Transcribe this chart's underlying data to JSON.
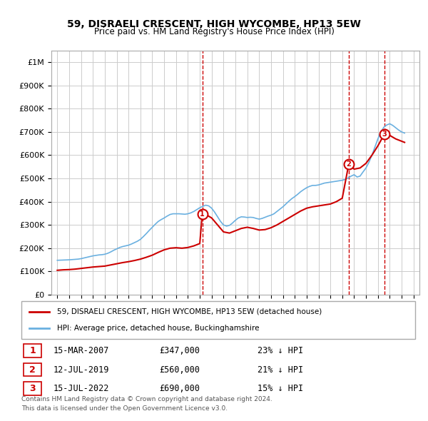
{
  "title": "59, DISRAELI CRESCENT, HIGH WYCOMBE, HP13 5EW",
  "subtitle": "Price paid vs. HM Land Registry's House Price Index (HPI)",
  "hpi_label": "HPI: Average price, detached house, Buckinghamshire",
  "price_label": "59, DISRAELI CRESCENT, HIGH WYCOMBE, HP13 5EW (detached house)",
  "hpi_color": "#6ab0e0",
  "price_color": "#cc0000",
  "vline_color": "#cc0000",
  "marker_color": "#cc0000",
  "background_color": "#ffffff",
  "grid_color": "#cccccc",
  "ylim": [
    0,
    1050000
  ],
  "yticks": [
    0,
    100000,
    200000,
    300000,
    400000,
    500000,
    600000,
    700000,
    800000,
    900000,
    1000000
  ],
  "ytick_labels": [
    "£0",
    "£100K",
    "£200K",
    "£300K",
    "£400K",
    "£500K",
    "£600K",
    "£700K",
    "£800K",
    "£900K",
    "£1M"
  ],
  "sales": [
    {
      "label": "1",
      "date": "15-MAR-2007",
      "price": 347000,
      "pct": "23%",
      "x": 2007.21
    },
    {
      "label": "2",
      "date": "12-JUL-2019",
      "price": 560000,
      "pct": "21%",
      "x": 2019.54
    },
    {
      "label": "3",
      "date": "15-JUL-2022",
      "price": 690000,
      "pct": "15%",
      "x": 2022.54
    }
  ],
  "footnote1": "Contains HM Land Registry data © Crown copyright and database right 2024.",
  "footnote2": "This data is licensed under the Open Government Licence v3.0.",
  "hpi_data": {
    "years": [
      1995.0,
      1995.25,
      1995.5,
      1995.75,
      1996.0,
      1996.25,
      1996.5,
      1996.75,
      1997.0,
      1997.25,
      1997.5,
      1997.75,
      1998.0,
      1998.25,
      1998.5,
      1998.75,
      1999.0,
      1999.25,
      1999.5,
      1999.75,
      2000.0,
      2000.25,
      2000.5,
      2000.75,
      2001.0,
      2001.25,
      2001.5,
      2001.75,
      2002.0,
      2002.25,
      2002.5,
      2002.75,
      2003.0,
      2003.25,
      2003.5,
      2003.75,
      2004.0,
      2004.25,
      2004.5,
      2004.75,
      2005.0,
      2005.25,
      2005.5,
      2005.75,
      2006.0,
      2006.25,
      2006.5,
      2006.75,
      2007.0,
      2007.25,
      2007.5,
      2007.75,
      2008.0,
      2008.25,
      2008.5,
      2008.75,
      2009.0,
      2009.25,
      2009.5,
      2009.75,
      2010.0,
      2010.25,
      2010.5,
      2010.75,
      2011.0,
      2011.25,
      2011.5,
      2011.75,
      2012.0,
      2012.25,
      2012.5,
      2012.75,
      2013.0,
      2013.25,
      2013.5,
      2013.75,
      2014.0,
      2014.25,
      2014.5,
      2014.75,
      2015.0,
      2015.25,
      2015.5,
      2015.75,
      2016.0,
      2016.25,
      2016.5,
      2016.75,
      2017.0,
      2017.25,
      2017.5,
      2017.75,
      2018.0,
      2018.25,
      2018.5,
      2018.75,
      2019.0,
      2019.25,
      2019.5,
      2019.75,
      2020.0,
      2020.25,
      2020.5,
      2020.75,
      2021.0,
      2021.25,
      2021.5,
      2021.75,
      2022.0,
      2022.25,
      2022.5,
      2022.75,
      2023.0,
      2023.25,
      2023.5,
      2023.75,
      2024.0,
      2024.25
    ],
    "values": [
      148000,
      148500,
      149000,
      149500,
      150000,
      151000,
      152000,
      153000,
      155000,
      158000,
      161000,
      164000,
      167000,
      169000,
      171000,
      172000,
      174000,
      178000,
      184000,
      191000,
      197000,
      203000,
      207000,
      210000,
      213000,
      218000,
      224000,
      230000,
      238000,
      250000,
      263000,
      277000,
      290000,
      303000,
      315000,
      323000,
      330000,
      338000,
      345000,
      348000,
      348000,
      348000,
      347000,
      346000,
      348000,
      352000,
      358000,
      366000,
      374000,
      380000,
      385000,
      382000,
      372000,
      355000,
      335000,
      315000,
      300000,
      295000,
      298000,
      308000,
      320000,
      330000,
      335000,
      334000,
      332000,
      333000,
      332000,
      328000,
      325000,
      328000,
      333000,
      338000,
      342000,
      348000,
      358000,
      368000,
      378000,
      390000,
      402000,
      413000,
      422000,
      432000,
      443000,
      452000,
      460000,
      466000,
      470000,
      470000,
      472000,
      476000,
      480000,
      482000,
      484000,
      486000,
      488000,
      490000,
      492000,
      496000,
      502000,
      510000,
      516000,
      506000,
      510000,
      528000,
      545000,
      570000,
      600000,
      635000,
      670000,
      700000,
      720000,
      730000,
      735000,
      728000,
      718000,
      708000,
      700000,
      695000
    ]
  },
  "price_data": {
    "years": [
      1995.0,
      1995.5,
      1996.0,
      1996.5,
      1997.0,
      1997.5,
      1998.0,
      1998.5,
      1999.0,
      1999.5,
      2000.0,
      2000.5,
      2001.0,
      2001.5,
      2002.0,
      2002.5,
      2003.0,
      2003.5,
      2004.0,
      2004.5,
      2005.0,
      2005.5,
      2006.0,
      2006.5,
      2007.0,
      2007.21,
      2007.5,
      2008.0,
      2008.5,
      2009.0,
      2009.5,
      2010.0,
      2010.5,
      2011.0,
      2011.5,
      2012.0,
      2012.5,
      2013.0,
      2013.5,
      2014.0,
      2014.5,
      2015.0,
      2015.5,
      2016.0,
      2016.5,
      2017.0,
      2017.5,
      2018.0,
      2018.5,
      2019.0,
      2019.54,
      2020.0,
      2020.5,
      2021.0,
      2021.5,
      2022.0,
      2022.54,
      2023.0,
      2023.5,
      2024.0,
      2024.25
    ],
    "values": [
      105000,
      107000,
      108000,
      110000,
      113000,
      116000,
      119000,
      121000,
      123000,
      128000,
      133000,
      138000,
      142000,
      147000,
      153000,
      161000,
      170000,
      182000,
      193000,
      200000,
      202000,
      200000,
      203000,
      210000,
      220000,
      347000,
      345000,
      330000,
      300000,
      270000,
      265000,
      275000,
      285000,
      290000,
      285000,
      278000,
      280000,
      288000,
      300000,
      315000,
      330000,
      345000,
      360000,
      372000,
      378000,
      382000,
      386000,
      390000,
      400000,
      415000,
      560000,
      540000,
      545000,
      565000,
      600000,
      640000,
      690000,
      685000,
      670000,
      660000,
      655000
    ]
  }
}
